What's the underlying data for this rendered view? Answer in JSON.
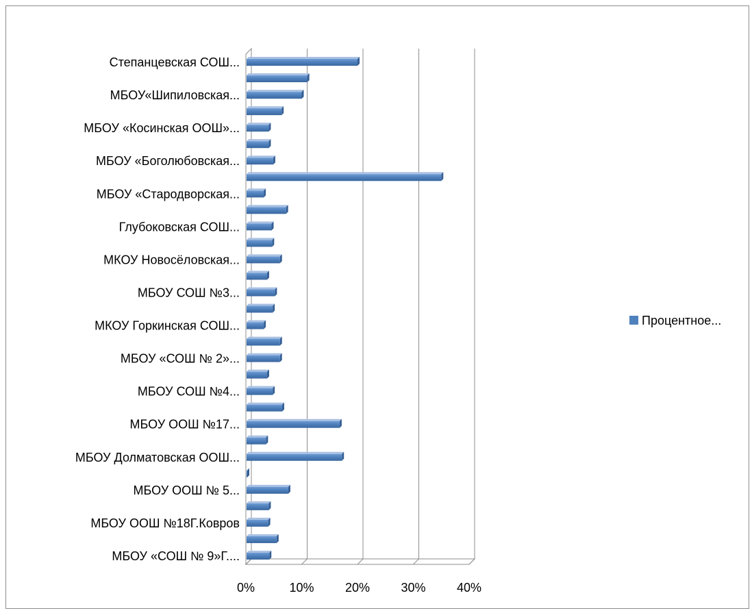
{
  "chart_data": {
    "type": "bar",
    "orientation": "horizontal",
    "style": "3d-clustered",
    "categories": [
      "Степанцевская СОШ...",
      "",
      "МБОУ«Шипиловская...",
      "",
      "МБОУ «Косинская ООШ»...",
      "",
      "МБОУ «Боголюбовская...",
      "",
      "МБОУ «Стародворская...",
      "",
      "Глубоковская СОШ...",
      "",
      "МКОУ Новосёловская...",
      "",
      "МБОУ СОШ №3...",
      "",
      "МКОУ Горкинская СОШ...",
      "",
      "МБОУ «СОШ № 2»...",
      "",
      "МБОУ СОШ №4...",
      "",
      "МБОУ ООШ №17...",
      "",
      "МБОУ Долматовская ООШ...",
      "",
      "МБОУ ООШ № 5...",
      "",
      "МБОУ ООШ №18Г.Ковров",
      "",
      "МБОУ «СОШ № 9»Г...."
    ],
    "series": [
      {
        "name": "Процентное...",
        "color": "#4F81BD",
        "values": [
          0.2,
          0.11,
          0.1,
          0.064,
          0.041,
          0.041,
          0.049,
          0.35,
          0.032,
          0.072,
          0.046,
          0.047,
          0.061,
          0.038,
          0.052,
          0.048,
          0.032,
          0.061,
          0.061,
          0.038,
          0.048,
          0.065,
          0.168,
          0.036,
          0.172,
          0.001,
          0.076,
          0.041,
          0.04,
          0.055,
          0.042
        ]
      }
    ],
    "x_ticks": [
      "0%",
      "10%",
      "20%",
      "30%",
      "40%"
    ],
    "xlim": [
      0,
      0.4
    ],
    "grid": true,
    "legend_position": "right"
  }
}
